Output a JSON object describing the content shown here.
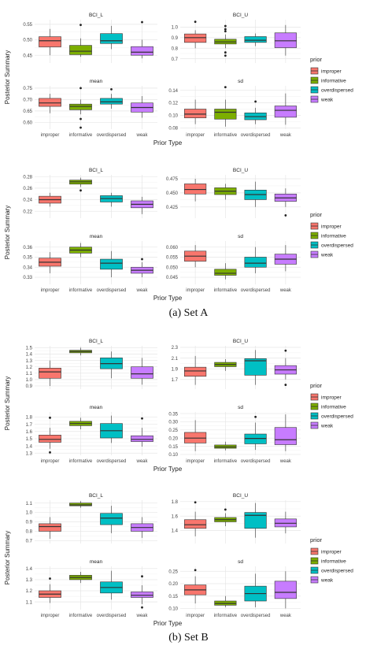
{
  "colors": {
    "improper": "#F8766D",
    "informative": "#7CAE00",
    "overdispersed": "#00BFC4",
    "weak": "#C77CFF",
    "panel_bg": "#ffffff",
    "grid": "#e6e6e6",
    "box_line": "#333333"
  },
  "common": {
    "categories": [
      "improper",
      "informative",
      "overdispersed",
      "weak"
    ],
    "xlabel": "Prior Type",
    "ylabel": "Posterior Summary",
    "legend_title": "prior",
    "legend_entries": [
      "improper",
      "informative",
      "overdispersed",
      "weak"
    ],
    "legend_position": "right"
  },
  "captions": {
    "set_a": "(a) Set A",
    "set_b": "(b) Set B"
  },
  "chart_data": [
    {
      "type": "box",
      "figure": "A1",
      "facets": [
        {
          "title": "BCI_L",
          "ylim": [
            0.425,
            0.565
          ],
          "yticks": [
            0.45,
            0.5,
            0.55
          ],
          "boxes": [
            {
              "q1": 0.477,
              "med": 0.497,
              "q3": 0.51,
              "lo": 0.45,
              "hi": 0.535,
              "out": []
            },
            {
              "q1": 0.452,
              "med": 0.463,
              "q3": 0.482,
              "lo": 0.445,
              "hi": 0.505,
              "out": [
                0.548
              ]
            },
            {
              "q1": 0.488,
              "med": 0.497,
              "q3": 0.52,
              "lo": 0.47,
              "hi": 0.545,
              "out": []
            },
            {
              "q1": 0.45,
              "med": 0.46,
              "q3": 0.478,
              "lo": 0.44,
              "hi": 0.5,
              "out": [
                0.557
              ]
            }
          ]
        },
        {
          "title": "BCI_U",
          "ylim": [
            0.66,
            1.07
          ],
          "yticks": [
            0.7,
            0.8,
            0.9,
            1.0
          ],
          "boxes": [
            {
              "q1": 0.855,
              "med": 0.9,
              "q3": 0.935,
              "lo": 0.8,
              "hi": 0.97,
              "out": [
                1.05
              ]
            },
            {
              "q1": 0.84,
              "med": 0.86,
              "q3": 0.885,
              "lo": 0.8,
              "hi": 0.93,
              "out": [
                0.96,
                0.98,
                1.01,
                0.76,
                0.73
              ]
            },
            {
              "q1": 0.855,
              "med": 0.875,
              "q3": 0.91,
              "lo": 0.82,
              "hi": 0.94,
              "out": []
            },
            {
              "q1": 0.805,
              "med": 0.87,
              "q3": 0.945,
              "lo": 0.73,
              "hi": 1.02,
              "out": []
            }
          ]
        },
        {
          "title": "mean",
          "ylim": [
            0.57,
            0.76
          ],
          "yticks": [
            0.6,
            0.65,
            0.7,
            0.75
          ],
          "boxes": [
            {
              "q1": 0.67,
              "med": 0.685,
              "q3": 0.705,
              "lo": 0.64,
              "hi": 0.725,
              "out": []
            },
            {
              "q1": 0.655,
              "med": 0.67,
              "q3": 0.68,
              "lo": 0.635,
              "hi": 0.7,
              "out": [
                0.75,
                0.615,
                0.577
              ]
            },
            {
              "q1": 0.68,
              "med": 0.69,
              "q3": 0.705,
              "lo": 0.66,
              "hi": 0.725,
              "out": [
                0.745
              ]
            },
            {
              "q1": 0.645,
              "med": 0.665,
              "q3": 0.685,
              "lo": 0.62,
              "hi": 0.715,
              "out": []
            }
          ]
        },
        {
          "title": "sd",
          "ylim": [
            0.078,
            0.147
          ],
          "yticks": [
            0.08,
            0.1,
            0.12,
            0.14
          ],
          "boxes": [
            {
              "q1": 0.096,
              "med": 0.102,
              "q3": 0.11,
              "lo": 0.086,
              "hi": 0.125,
              "out": []
            },
            {
              "q1": 0.094,
              "med": 0.105,
              "q3": 0.11,
              "lo": 0.082,
              "hi": 0.125,
              "out": [
                0.145
              ]
            },
            {
              "q1": 0.093,
              "med": 0.098,
              "q3": 0.104,
              "lo": 0.086,
              "hi": 0.112,
              "out": [
                0.122
              ]
            },
            {
              "q1": 0.097,
              "med": 0.108,
              "q3": 0.115,
              "lo": 0.085,
              "hi": 0.135,
              "out": []
            }
          ]
        }
      ]
    },
    {
      "type": "box",
      "figure": "A2",
      "facets": [
        {
          "title": "BCI_L",
          "ylim": [
            0.208,
            0.283
          ],
          "yticks": [
            0.22,
            0.24,
            0.26,
            0.28
          ],
          "boxes": [
            {
              "q1": 0.234,
              "med": 0.24,
              "q3": 0.246,
              "lo": 0.228,
              "hi": 0.252,
              "out": []
            },
            {
              "q1": 0.267,
              "med": 0.271,
              "q3": 0.274,
              "lo": 0.262,
              "hi": 0.278,
              "out": [
                0.256
              ]
            },
            {
              "q1": 0.236,
              "med": 0.242,
              "q3": 0.247,
              "lo": 0.228,
              "hi": 0.252,
              "out": []
            },
            {
              "q1": 0.226,
              "med": 0.232,
              "q3": 0.238,
              "lo": 0.215,
              "hi": 0.245,
              "out": []
            }
          ]
        },
        {
          "title": "BCI_U",
          "ylim": [
            0.405,
            0.482
          ],
          "yticks": [
            0.425,
            0.45,
            0.475
          ],
          "boxes": [
            {
              "q1": 0.448,
              "med": 0.456,
              "q3": 0.466,
              "lo": 0.435,
              "hi": 0.475,
              "out": []
            },
            {
              "q1": 0.447,
              "med": 0.453,
              "q3": 0.459,
              "lo": 0.438,
              "hi": 0.466,
              "out": []
            },
            {
              "q1": 0.438,
              "med": 0.447,
              "q3": 0.455,
              "lo": 0.425,
              "hi": 0.47,
              "out": []
            },
            {
              "q1": 0.435,
              "med": 0.441,
              "q3": 0.448,
              "lo": 0.425,
              "hi": 0.458,
              "out": [
                0.41
              ]
            }
          ]
        },
        {
          "title": "mean",
          "ylim": [
            0.323,
            0.366
          ],
          "yticks": [
            0.33,
            0.34,
            0.35,
            0.36
          ],
          "boxes": [
            {
              "q1": 0.341,
              "med": 0.345,
              "q3": 0.349,
              "lo": 0.334,
              "hi": 0.355,
              "out": []
            },
            {
              "q1": 0.354,
              "med": 0.357,
              "q3": 0.36,
              "lo": 0.35,
              "hi": 0.364,
              "out": []
            },
            {
              "q1": 0.338,
              "med": 0.344,
              "q3": 0.348,
              "lo": 0.33,
              "hi": 0.356,
              "out": []
            },
            {
              "q1": 0.334,
              "med": 0.337,
              "q3": 0.34,
              "lo": 0.33,
              "hi": 0.345,
              "out": [
                0.348
              ]
            }
          ]
        },
        {
          "title": "sd",
          "ylim": [
            0.0415,
            0.063
          ],
          "yticks": [
            0.045,
            0.05,
            0.055,
            0.06
          ],
          "boxes": [
            {
              "q1": 0.053,
              "med": 0.0555,
              "q3": 0.058,
              "lo": 0.05,
              "hi": 0.061,
              "out": []
            },
            {
              "q1": 0.046,
              "med": 0.047,
              "q3": 0.049,
              "lo": 0.044,
              "hi": 0.052,
              "out": []
            },
            {
              "q1": 0.05,
              "med": 0.052,
              "q3": 0.055,
              "lo": 0.047,
              "hi": 0.06,
              "out": []
            },
            {
              "q1": 0.0515,
              "med": 0.054,
              "q3": 0.0565,
              "lo": 0.048,
              "hi": 0.061,
              "out": []
            }
          ]
        }
      ]
    },
    {
      "type": "box",
      "figure": "B1",
      "facets": [
        {
          "title": "BCI_L",
          "ylim": [
            0.85,
            1.53
          ],
          "yticks": [
            0.9,
            1.0,
            1.1,
            1.2,
            1.3,
            1.4,
            1.5
          ],
          "boxes": [
            {
              "q1": 1.02,
              "med": 1.12,
              "q3": 1.18,
              "lo": 0.9,
              "hi": 1.3,
              "out": []
            },
            {
              "q1": 1.42,
              "med": 1.44,
              "q3": 1.46,
              "lo": 1.38,
              "hi": 1.5,
              "out": []
            },
            {
              "q1": 1.17,
              "med": 1.25,
              "q3": 1.34,
              "lo": 1.02,
              "hi": 1.44,
              "out": []
            },
            {
              "q1": 1.02,
              "med": 1.09,
              "q3": 1.2,
              "lo": 0.92,
              "hi": 1.34,
              "out": []
            }
          ]
        },
        {
          "title": "BCI_U",
          "ylim": [
            1.52,
            2.33
          ],
          "yticks": [
            1.7,
            1.9,
            2.1,
            2.3
          ],
          "boxes": [
            {
              "q1": 1.76,
              "med": 1.86,
              "q3": 1.93,
              "lo": 1.6,
              "hi": 2.14,
              "out": []
            },
            {
              "q1": 1.94,
              "med": 1.98,
              "q3": 2.02,
              "lo": 1.86,
              "hi": 2.08,
              "out": []
            },
            {
              "q1": 1.78,
              "med": 2.05,
              "q3": 2.09,
              "lo": 1.6,
              "hi": 2.25,
              "out": []
            },
            {
              "q1": 1.8,
              "med": 1.88,
              "q3": 1.96,
              "lo": 1.7,
              "hi": 2.1,
              "out": [
                2.24,
                1.6
              ]
            }
          ]
        },
        {
          "title": "mean",
          "ylim": [
            1.27,
            1.87
          ],
          "yticks": [
            1.3,
            1.4,
            1.5,
            1.6,
            1.7,
            1.8
          ],
          "boxes": [
            {
              "q1": 1.45,
              "med": 1.49,
              "q3": 1.55,
              "lo": 1.36,
              "hi": 1.65,
              "out": [
                1.79,
                1.31
              ]
            },
            {
              "q1": 1.68,
              "med": 1.71,
              "q3": 1.74,
              "lo": 1.63,
              "hi": 1.79,
              "out": []
            },
            {
              "q1": 1.51,
              "med": 1.61,
              "q3": 1.71,
              "lo": 1.44,
              "hi": 1.82,
              "out": []
            },
            {
              "q1": 1.46,
              "med": 1.49,
              "q3": 1.54,
              "lo": 1.39,
              "hi": 1.65,
              "out": [
                1.78
              ]
            }
          ]
        },
        {
          "title": "sd",
          "ylim": [
            0.095,
            0.36
          ],
          "yticks": [
            0.1,
            0.15,
            0.2,
            0.25,
            0.3,
            0.35
          ],
          "boxes": [
            {
              "q1": 0.17,
              "med": 0.2,
              "q3": 0.235,
              "lo": 0.12,
              "hi": 0.31,
              "out": []
            },
            {
              "q1": 0.138,
              "med": 0.146,
              "q3": 0.158,
              "lo": 0.125,
              "hi": 0.178,
              "out": []
            },
            {
              "q1": 0.165,
              "med": 0.198,
              "q3": 0.225,
              "lo": 0.128,
              "hi": 0.295,
              "out": [
                0.33
              ]
            },
            {
              "q1": 0.16,
              "med": 0.19,
              "q3": 0.265,
              "lo": 0.12,
              "hi": 0.345,
              "out": []
            }
          ]
        }
      ]
    },
    {
      "type": "box",
      "figure": "B2",
      "facets": [
        {
          "title": "BCI_L",
          "ylim": [
            0.67,
            1.13
          ],
          "yticks": [
            0.7,
            0.8,
            0.9,
            1.0,
            1.1
          ],
          "boxes": [
            {
              "q1": 0.8,
              "med": 0.85,
              "q3": 0.88,
              "lo": 0.72,
              "hi": 0.95,
              "out": []
            },
            {
              "q1": 1.07,
              "med": 1.08,
              "q3": 1.1,
              "lo": 1.05,
              "hi": 1.12,
              "out": []
            },
            {
              "q1": 0.87,
              "med": 0.94,
              "q3": 0.99,
              "lo": 0.78,
              "hi": 1.07,
              "out": []
            },
            {
              "q1": 0.8,
              "med": 0.84,
              "q3": 0.88,
              "lo": 0.73,
              "hi": 0.95,
              "out": []
            }
          ]
        },
        {
          "title": "BCI_U",
          "ylim": [
            1.22,
            1.82
          ],
          "yticks": [
            1.4,
            1.6,
            1.8
          ],
          "boxes": [
            {
              "q1": 1.43,
              "med": 1.48,
              "q3": 1.55,
              "lo": 1.32,
              "hi": 1.66,
              "out": [
                1.79
              ]
            },
            {
              "q1": 1.52,
              "med": 1.55,
              "q3": 1.58,
              "lo": 1.46,
              "hi": 1.64,
              "out": [
                1.69
              ]
            },
            {
              "q1": 1.43,
              "med": 1.61,
              "q3": 1.65,
              "lo": 1.3,
              "hi": 1.78,
              "out": []
            },
            {
              "q1": 1.45,
              "med": 1.5,
              "q3": 1.56,
              "lo": 1.36,
              "hi": 1.66,
              "out": []
            }
          ]
        },
        {
          "title": "mean",
          "ylim": [
            1.03,
            1.42
          ],
          "yticks": [
            1.1,
            1.2,
            1.3,
            1.4
          ],
          "boxes": [
            {
              "q1": 1.14,
              "med": 1.17,
              "q3": 1.2,
              "lo": 1.09,
              "hi": 1.26,
              "out": [
                1.31
              ]
            },
            {
              "q1": 1.3,
              "med": 1.32,
              "q3": 1.34,
              "lo": 1.27,
              "hi": 1.37,
              "out": []
            },
            {
              "q1": 1.18,
              "med": 1.23,
              "q3": 1.28,
              "lo": 1.12,
              "hi": 1.38,
              "out": []
            },
            {
              "q1": 1.14,
              "med": 1.16,
              "q3": 1.19,
              "lo": 1.08,
              "hi": 1.25,
              "out": [
                1.33,
                1.05
              ]
            }
          ]
        },
        {
          "title": "sd",
          "ylim": [
            0.095,
            0.27
          ],
          "yticks": [
            0.1,
            0.15,
            0.2,
            0.25
          ],
          "boxes": [
            {
              "q1": 0.155,
              "med": 0.175,
              "q3": 0.195,
              "lo": 0.12,
              "hi": 0.23,
              "out": [
                0.255
              ]
            },
            {
              "q1": 0.113,
              "med": 0.12,
              "q3": 0.13,
              "lo": 0.105,
              "hi": 0.15,
              "out": []
            },
            {
              "q1": 0.13,
              "med": 0.16,
              "q3": 0.19,
              "lo": 0.105,
              "hi": 0.24,
              "out": []
            },
            {
              "q1": 0.14,
              "med": 0.165,
              "q3": 0.21,
              "lo": 0.1,
              "hi": 0.25,
              "out": []
            }
          ]
        }
      ]
    }
  ]
}
